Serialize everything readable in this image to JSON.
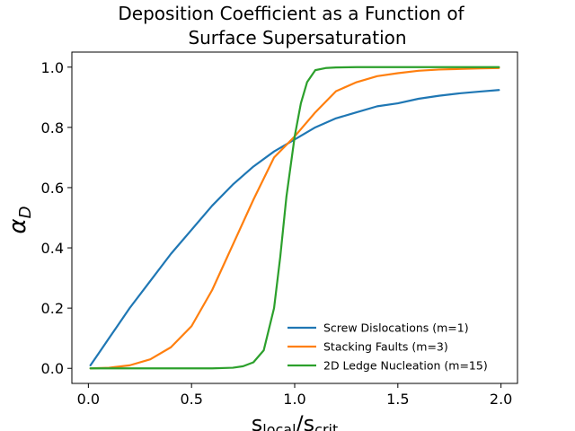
{
  "chart_data": {
    "type": "line",
    "title_line1": "Deposition Coefficient as a Function of",
    "title_line2": "Surface Supersaturation",
    "xlabel": {
      "base": "s",
      "sub1": "local",
      "slash": "/",
      "sub2": "crit"
    },
    "ylabel": {
      "base": "α",
      "sub": "D"
    },
    "xlim": [
      -0.08,
      2.08
    ],
    "ylim": [
      -0.05,
      1.05
    ],
    "x_ticks": [
      0.0,
      0.5,
      1.0,
      1.5,
      2.0
    ],
    "x_tick_labels": [
      "0.0",
      "0.5",
      "1.0",
      "1.5",
      "2.0"
    ],
    "y_ticks": [
      0.0,
      0.2,
      0.4,
      0.6,
      0.8,
      1.0
    ],
    "y_tick_labels": [
      "0.0",
      "0.2",
      "0.4",
      "0.6",
      "0.8",
      "1.0"
    ],
    "grid": false,
    "legend_position": "lower-right",
    "series": [
      {
        "name": "Screw Dislocations (m=1)",
        "color": "#1f77b4",
        "x": [
          0.01,
          0.05,
          0.1,
          0.2,
          0.3,
          0.4,
          0.5,
          0.6,
          0.7,
          0.8,
          0.9,
          1.0,
          1.1,
          1.2,
          1.3,
          1.4,
          1.5,
          1.6,
          1.7,
          1.8,
          1.9,
          1.99
        ],
        "y": [
          0.01,
          0.05,
          0.1,
          0.2,
          0.29,
          0.38,
          0.46,
          0.54,
          0.61,
          0.67,
          0.72,
          0.76,
          0.8,
          0.83,
          0.85,
          0.87,
          0.88,
          0.895,
          0.905,
          0.913,
          0.919,
          0.924
        ]
      },
      {
        "name": "Stacking Faults (m=3)",
        "color": "#ff7f0e",
        "x": [
          0.01,
          0.1,
          0.2,
          0.3,
          0.4,
          0.5,
          0.6,
          0.7,
          0.8,
          0.9,
          1.0,
          1.1,
          1.2,
          1.3,
          1.4,
          1.5,
          1.6,
          1.7,
          1.8,
          1.9,
          1.99
        ],
        "y": [
          0.0,
          0.002,
          0.01,
          0.03,
          0.07,
          0.14,
          0.26,
          0.41,
          0.56,
          0.7,
          0.77,
          0.85,
          0.92,
          0.95,
          0.97,
          0.98,
          0.988,
          0.992,
          0.994,
          0.996,
          0.997
        ]
      },
      {
        "name": "2D Ledge Nucleation (m=15)",
        "color": "#2ca02c",
        "x": [
          0.01,
          0.2,
          0.4,
          0.6,
          0.7,
          0.75,
          0.8,
          0.85,
          0.9,
          0.93,
          0.96,
          1.0,
          1.03,
          1.06,
          1.1,
          1.15,
          1.2,
          1.3,
          1.5,
          1.7,
          1.99
        ],
        "y": [
          0.0,
          0.0,
          0.0,
          0.0,
          0.002,
          0.007,
          0.02,
          0.06,
          0.2,
          0.37,
          0.57,
          0.77,
          0.88,
          0.95,
          0.99,
          0.997,
          0.999,
          1.0,
          1.0,
          1.0,
          1.0
        ]
      }
    ]
  }
}
